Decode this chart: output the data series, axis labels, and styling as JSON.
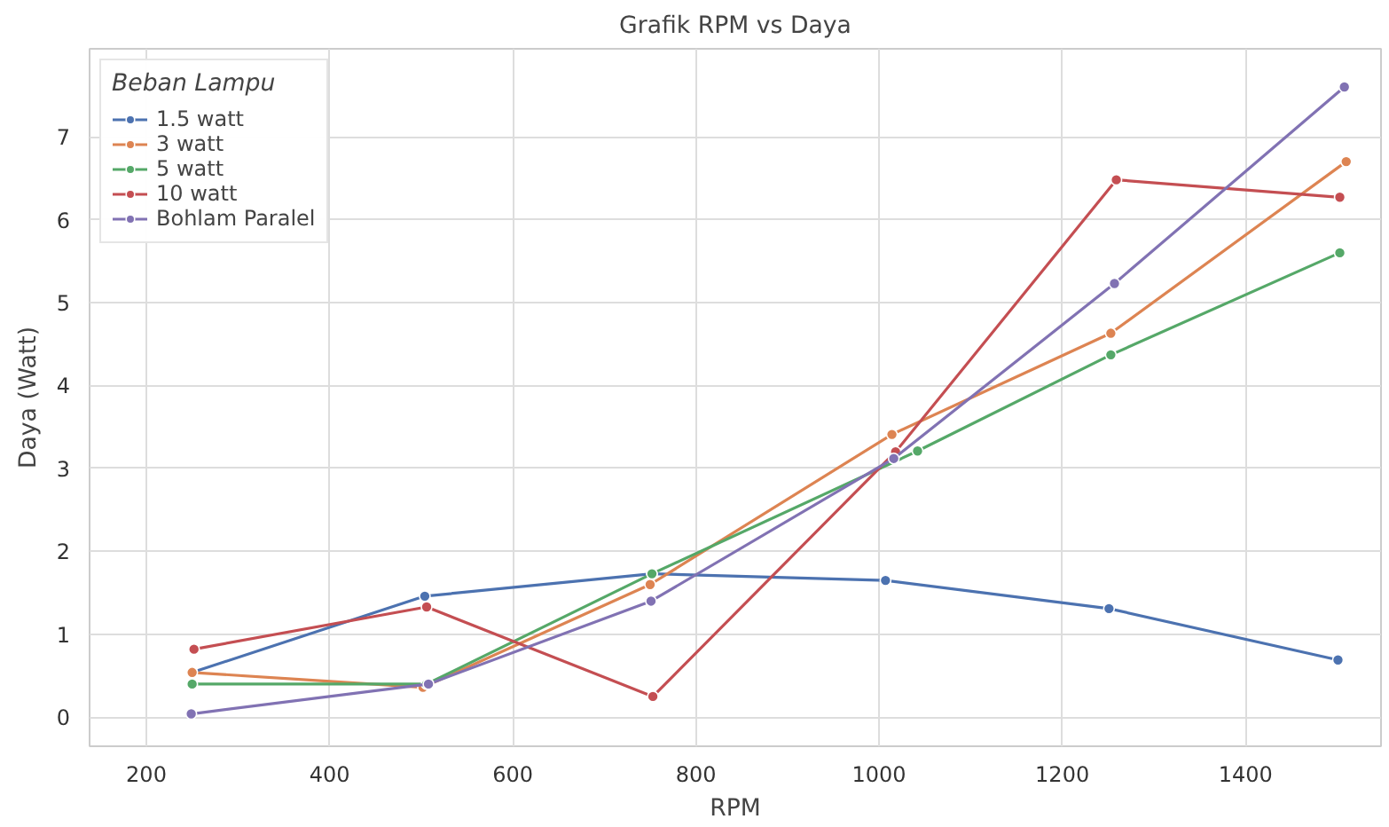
{
  "chart_data": {
    "type": "line",
    "title": "Grafik RPM vs Daya",
    "xlabel": "RPM",
    "ylabel": "Daya (Watt)",
    "legend_title": "Beban Lampu",
    "xlim": [
      138,
      1548
    ],
    "ylim": [
      -0.35,
      8.06
    ],
    "xticks": [
      200,
      400,
      600,
      800,
      1000,
      1200,
      1400
    ],
    "yticks": [
      0,
      1,
      2,
      3,
      4,
      5,
      6,
      7
    ],
    "grid": true,
    "legend": "top left",
    "marker": "circle",
    "line_style": "solid",
    "series": [
      {
        "name": "1.5 watt",
        "color": "#4c72b0",
        "x": [
          250,
          504,
          752,
          1007,
          1251,
          1501
        ],
        "values": [
          0.54,
          1.46,
          1.73,
          1.65,
          1.31,
          0.69
        ]
      },
      {
        "name": "3 watt",
        "color": "#dd8452",
        "x": [
          250,
          502,
          750,
          1014,
          1253,
          1510
        ],
        "values": [
          0.54,
          0.36,
          1.6,
          3.41,
          4.63,
          6.7
        ]
      },
      {
        "name": "5 watt",
        "color": "#55a868",
        "x": [
          250,
          506,
          752,
          1042,
          1253,
          1503
        ],
        "values": [
          0.4,
          0.4,
          1.73,
          3.21,
          4.37,
          5.6
        ]
      },
      {
        "name": "10 watt",
        "color": "#c44e52",
        "x": [
          252,
          506,
          753,
          1018,
          1259,
          1503
        ],
        "values": [
          0.82,
          1.33,
          0.25,
          3.2,
          6.48,
          6.27
        ]
      },
      {
        "name": "Bohlam Paralel",
        "color": "#8172b3",
        "x": [
          249,
          508,
          751,
          1016,
          1257,
          1508
        ],
        "values": [
          0.04,
          0.4,
          1.4,
          3.12,
          5.23,
          7.6
        ]
      }
    ]
  }
}
